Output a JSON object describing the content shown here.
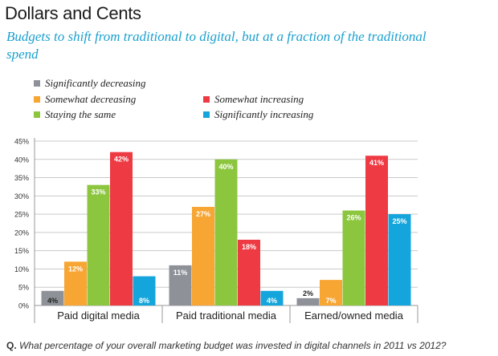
{
  "title": "Dollars and Cents",
  "subtitle": "Budgets to shift from traditional to digital, but at a fraction of the traditional spend",
  "footer": {
    "prefix": "Q.",
    "question": "What percentage of your overall marketing budget was invested in digital channels in 2011 vs 2012?"
  },
  "legend_placement": "top",
  "chart_data": {
    "type": "bar",
    "categories": [
      "Paid digital media",
      "Paid traditional media",
      "Earned/owned media"
    ],
    "series": [
      {
        "name": "Significantly decreasing",
        "color": "#8e9298",
        "values": [
          4,
          11,
          2
        ],
        "labels": [
          "4%",
          "11%",
          "2%"
        ]
      },
      {
        "name": "Somewhat decreasing",
        "color": "#f7a533",
        "values": [
          12,
          27,
          7
        ],
        "labels": [
          "12%",
          "27%",
          "7%"
        ]
      },
      {
        "name": "Staying the same",
        "color": "#8cc63f",
        "values": [
          33,
          40,
          26
        ],
        "labels": [
          "33%",
          "40%",
          "26%"
        ]
      },
      {
        "name": "Somewhat increasing",
        "color": "#ee3a43",
        "values": [
          42,
          18,
          41
        ],
        "labels": [
          "42%",
          "18%",
          "41%"
        ]
      },
      {
        "name": "Significantly increasing",
        "color": "#14a5dc",
        "values": [
          8,
          4,
          25
        ],
        "labels": [
          "8%",
          "4%",
          "25%"
        ]
      }
    ],
    "yticks": [
      "0%",
      "5%",
      "10%",
      "15%",
      "20%",
      "25%",
      "30%",
      "35%",
      "40%",
      "45%"
    ],
    "ylim": [
      0,
      45
    ],
    "grid": true
  }
}
